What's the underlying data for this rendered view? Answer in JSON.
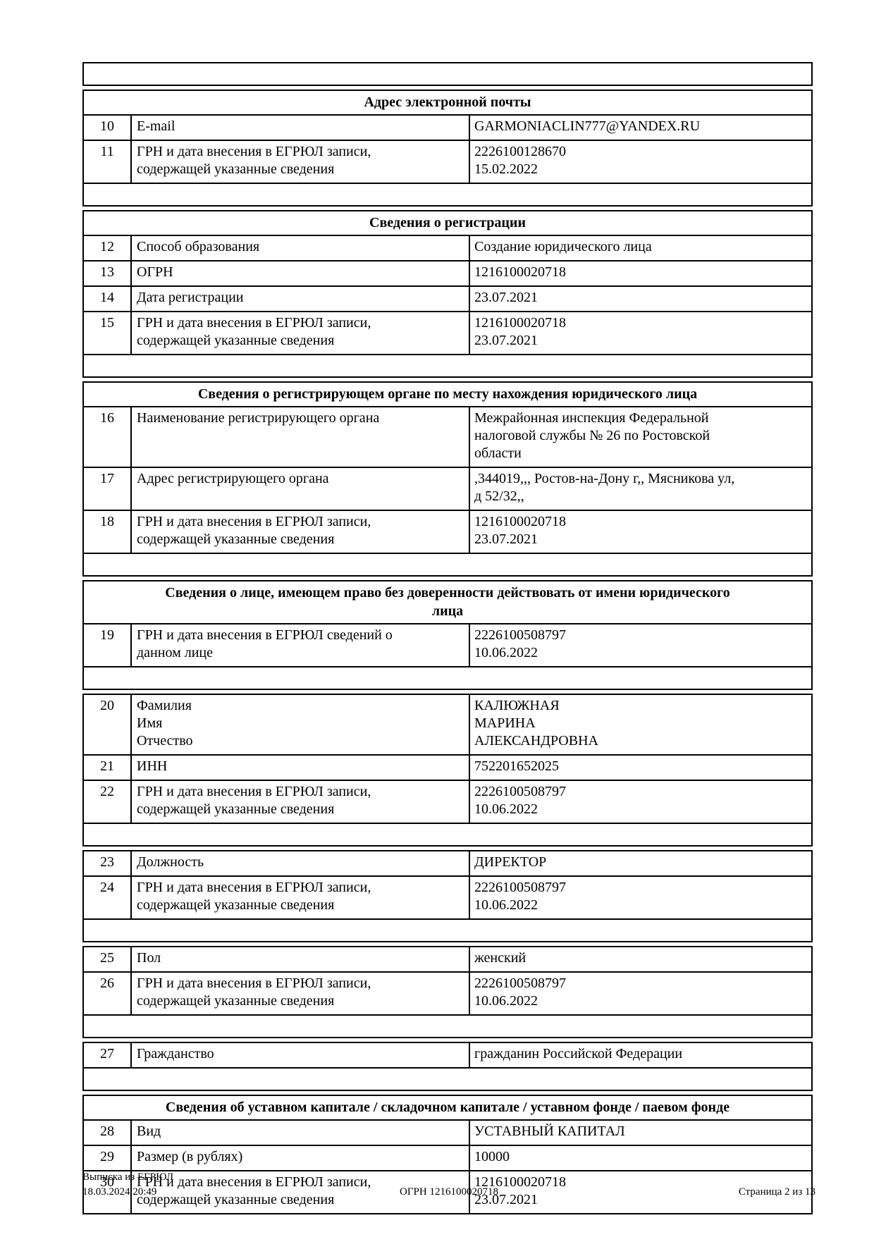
{
  "document": {
    "blocks": [
      {
        "rows": [],
        "trailing_spacer": true
      },
      {
        "title": "Адрес электронной почты",
        "rows": [
          {
            "num": "10",
            "label": "E-mail",
            "value": "GARMONIACLIN777@YANDEX.RU"
          },
          {
            "num": "11",
            "label": "ГРН и дата внесения в ЕГРЮЛ записи,\nсодержащей указанные сведения",
            "value": "2226100128670\n15.02.2022"
          }
        ],
        "trailing_spacer": true
      },
      {
        "title": "Сведения о регистрации",
        "rows": [
          {
            "num": "12",
            "label": "Способ образования",
            "value": "Создание юридического лица"
          },
          {
            "num": "13",
            "label": "ОГРН",
            "value": "1216100020718"
          },
          {
            "num": "14",
            "label": "Дата регистрации",
            "value": "23.07.2021"
          },
          {
            "num": "15",
            "label": "ГРН и дата внесения в ЕГРЮЛ записи,\nсодержащей указанные сведения",
            "value": "1216100020718\n23.07.2021"
          }
        ],
        "trailing_spacer": true
      },
      {
        "title": "Сведения о регистрирующем органе по месту нахождения юридического лица",
        "rows": [
          {
            "num": "16",
            "label": "Наименование регистрирующего органа",
            "value": "Межрайонная инспекция Федеральной\nналоговой службы № 26 по Ростовской\nобласти"
          },
          {
            "num": "17",
            "label": "Адрес регистрирующего органа",
            "value": ",344019,,, Ростов-на-Дону г,, Мясникова ул,\nд 52/32,,"
          },
          {
            "num": "18",
            "label": "ГРН и дата внесения в ЕГРЮЛ записи,\nсодержащей указанные сведения",
            "value": "1216100020718\n23.07.2021"
          }
        ],
        "trailing_spacer": true
      },
      {
        "title": "Сведения о лице, имеющем право без доверенности действовать от имени юридического\nлица",
        "rows": [
          {
            "num": "19",
            "label": "ГРН и дата внесения в ЕГРЮЛ сведений о\nданном лице",
            "value": "2226100508797\n10.06.2022"
          }
        ],
        "trailing_spacer": true
      },
      {
        "rows": [
          {
            "num": "20",
            "label": "Фамилия\nИмя\nОтчество",
            "value": "КАЛЮЖНАЯ\nМАРИНА\nАЛЕКСАНДРОВНА"
          },
          {
            "num": "21",
            "label": "ИНН",
            "value": "752201652025"
          },
          {
            "num": "22",
            "label": "ГРН и дата внесения в ЕГРЮЛ записи,\nсодержащей указанные сведения",
            "value": "2226100508797\n10.06.2022"
          }
        ],
        "trailing_spacer": true
      },
      {
        "rows": [
          {
            "num": "23",
            "label": "Должность",
            "value": "ДИРЕКТОР"
          },
          {
            "num": "24",
            "label": "ГРН и дата внесения в ЕГРЮЛ записи,\nсодержащей указанные сведения",
            "value": "2226100508797\n10.06.2022"
          }
        ],
        "trailing_spacer": true
      },
      {
        "rows": [
          {
            "num": "25",
            "label": "Пол",
            "value": "женский"
          },
          {
            "num": "26",
            "label": "ГРН и дата внесения в ЕГРЮЛ записи,\nсодержащей указанные сведения",
            "value": "2226100508797\n10.06.2022"
          }
        ],
        "trailing_spacer": true
      },
      {
        "rows": [
          {
            "num": "27",
            "label": "Гражданство",
            "value": "гражданин Российской Федерации"
          }
        ],
        "trailing_spacer": true
      },
      {
        "title": "Сведения об уставном капитале / складочном капитале / уставном фонде / паевом фонде",
        "rows": [
          {
            "num": "28",
            "label": "Вид",
            "value": "УСТАВНЫЙ КАПИТАЛ"
          },
          {
            "num": "29",
            "label": "Размер (в рублях)",
            "value": "10000"
          },
          {
            "num": "30",
            "label": "ГРН и дата внесения в ЕГРЮЛ записи,\nсодержащей указанные сведения",
            "value": "1216100020718\n23.07.2021"
          }
        ],
        "trailing_spacer": false
      }
    ],
    "footer": {
      "left_line1": "Выписка из ЕГРЮЛ",
      "left_line2": "18.03.2024 20:49",
      "center": "ОГРН 1216100020718",
      "right": "Страница 2 из 13"
    }
  }
}
